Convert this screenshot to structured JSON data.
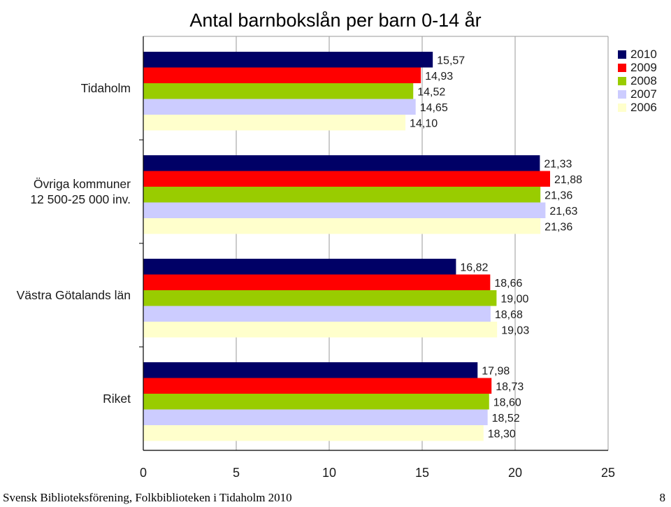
{
  "chart_data": {
    "type": "bar",
    "orientation": "horizontal",
    "title": "Antal barnbokslån per barn 0-14 år",
    "categories": [
      "Tidaholm",
      "Övriga kommuner\n12 500-25 000 inv.",
      "Västra Götalands län",
      "Riket"
    ],
    "series": [
      {
        "name": "2010",
        "color": "#000066",
        "values": [
          15.57,
          21.33,
          16.82,
          17.98
        ],
        "labels": [
          "15,57",
          "21,33",
          "16,82",
          "17,98"
        ]
      },
      {
        "name": "2009",
        "color": "#ff0000",
        "values": [
          14.93,
          21.88,
          18.66,
          18.73
        ],
        "labels": [
          "14,93",
          "21,88",
          "18,66",
          "18,73"
        ]
      },
      {
        "name": "2008",
        "color": "#99cc00",
        "values": [
          14.52,
          21.36,
          19.0,
          18.6
        ],
        "labels": [
          "14,52",
          "21,36",
          "19,00",
          "18,60"
        ]
      },
      {
        "name": "2007",
        "color": "#ccccff",
        "values": [
          14.65,
          21.63,
          18.68,
          18.52
        ],
        "labels": [
          "14,65",
          "21,63",
          "18,68",
          "18,52"
        ]
      },
      {
        "name": "2006",
        "color": "#ffffcc",
        "values": [
          14.1,
          21.36,
          19.03,
          18.3
        ],
        "labels": [
          "14,10",
          "21,36",
          "19,03",
          "18,30"
        ]
      }
    ],
    "xlim": [
      0,
      25
    ],
    "xticks": [
      "0",
      "5",
      "10",
      "15",
      "20",
      "25"
    ],
    "grid": true,
    "legend_position": "top-right"
  },
  "footer": {
    "text": "Svensk Biblioteksförening, Folkbiblioteken i Tidaholm 2010",
    "page": "8"
  }
}
